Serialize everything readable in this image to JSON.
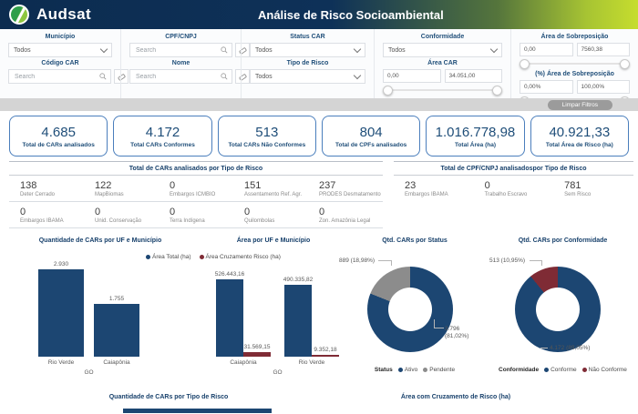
{
  "header": {
    "brand": "Audsat",
    "title": "Análise de Risco Socioambiental"
  },
  "filters": {
    "municipio": {
      "label": "Município",
      "value": "Todos"
    },
    "codigo_car": {
      "label": "Código CAR",
      "placeholder": "Search"
    },
    "cpf_cnpj": {
      "label": "CPF/CNPJ",
      "placeholder": "Search"
    },
    "nome": {
      "label": "Nome",
      "placeholder": "Search"
    },
    "status_car": {
      "label": "Status CAR",
      "value": "Todos"
    },
    "tipo_risco": {
      "label": "Tipo de Risco",
      "value": "Todos"
    },
    "conformidade": {
      "label": "Conformidade",
      "value": "Todos"
    },
    "area_car": {
      "label": "Área CAR",
      "min": "0,00",
      "max": "34.051,00"
    },
    "area_sobreposicao": {
      "label": "Área de Sobreposição",
      "min": "0,00",
      "max": "7560,38"
    },
    "pct_area_sobreposicao": {
      "label": "(%) Área de Sobreposição",
      "min": "0,00%",
      "max": "100,00%"
    },
    "limpar": "Limpar Filtros"
  },
  "kpis": [
    {
      "value": "4.685",
      "label": "Total de CARs analisados"
    },
    {
      "value": "4.172",
      "label": "Total CARs Conformes"
    },
    {
      "value": "513",
      "label": "Total CARs Não Conformes"
    },
    {
      "value": "804",
      "label": "Total de CPFs analisados"
    },
    {
      "value": "1.016.778,98",
      "label": "Total Área (ha)"
    },
    {
      "value": "40.921,33",
      "label": "Total Área de Risco (ha)"
    }
  ],
  "risk_tables": {
    "cars": {
      "title": "Total de CARs analisados por Tipo de Risco",
      "rows": [
        [
          {
            "value": "138",
            "label": "Deter Cerrado"
          },
          {
            "value": "122",
            "label": "MapBiomas"
          },
          {
            "value": "0",
            "label": "Embargos ICMBIO"
          },
          {
            "value": "151",
            "label": "Assentamento Ref. Agr."
          },
          {
            "value": "237",
            "label": "PRODES Desmatamento"
          }
        ],
        [
          {
            "value": "0",
            "label": "Embargos IBAMA"
          },
          {
            "value": "0",
            "label": "Unid. Conservação"
          },
          {
            "value": "0",
            "label": "Terra Indígena"
          },
          {
            "value": "0",
            "label": "Quilombolas"
          },
          {
            "value": "0",
            "label": "Zon. Amazônia Legal"
          }
        ]
      ]
    },
    "cpfs": {
      "title": "Total de CPF/CNPJ analisadospor Tipo de Risco",
      "rows": [
        [
          {
            "value": "23",
            "label": "Embargos IBAMA"
          },
          {
            "value": "0",
            "label": "Trabalho Escravo"
          },
          {
            "value": "781",
            "label": "Sem Risco"
          }
        ]
      ]
    }
  },
  "chart_data": [
    {
      "type": "bar",
      "title": "Quantidade de CARs por UF e Município",
      "categories": [
        "Rio Verde",
        "Caiapônia"
      ],
      "values": [
        2930,
        1755
      ],
      "value_labels": [
        "2.930",
        "1.755"
      ],
      "group_label": "GO",
      "ylim": [
        0,
        2930
      ]
    },
    {
      "type": "bar",
      "title": "Área por UF e Município",
      "categories": [
        "Caiapônia",
        "Rio Verde"
      ],
      "series": [
        {
          "name": "Área Total (ha)",
          "color": "#1c4672",
          "values": [
            526443.16,
            490335.82
          ],
          "labels": [
            "526.443,16",
            "490.335,82"
          ]
        },
        {
          "name": "Área Cruzamento Risco (ha)",
          "color": "#7f2b35",
          "values": [
            31569.15,
            9352.18
          ],
          "labels": [
            "31.569,15",
            "9.352,18"
          ]
        }
      ],
      "group_label": "GO",
      "ylim": [
        0,
        526443.16
      ]
    },
    {
      "type": "donut",
      "title": "Qtd. CARs por Status",
      "legend_title": "Status",
      "slices": [
        {
          "name": "Ativo",
          "value": 3796,
          "pct": 81.02,
          "color": "#1c4672",
          "callout_lines": [
            "3.796",
            "(81,02%)"
          ]
        },
        {
          "name": "Pendente",
          "value": 889,
          "pct": 18.98,
          "color": "#8c8c8c",
          "callout_lines": [
            "889 (18,98%)"
          ]
        }
      ]
    },
    {
      "type": "donut",
      "title": "Qtd. CARs por Conformidade",
      "legend_title": "Conformidade",
      "slices": [
        {
          "name": "Conforme",
          "value": 4172,
          "pct": 89.05,
          "color": "#1c4672",
          "callout_lines": [
            "4.172 (89,05%)"
          ]
        },
        {
          "name": "Não Conforme",
          "value": 513,
          "pct": 10.95,
          "color": "#7f2b35",
          "callout_lines": [
            "513 (10,95%)"
          ]
        }
      ]
    }
  ],
  "bottom": {
    "left_title": "Quantidade de CARs por Tipo de Risco",
    "right_title": "Área com Cruzamento de Risco (ha)"
  },
  "colors": {
    "navy_text": "#1f4e79",
    "bar_blue": "#1c4672",
    "maroon": "#7f2b35",
    "slice_gray": "#8c8c8c",
    "header_navy": "#0c2c50",
    "header_lime": "#c6dd2e",
    "logo_green": "#2f9e49",
    "logo_lime": "#8dc63f"
  }
}
